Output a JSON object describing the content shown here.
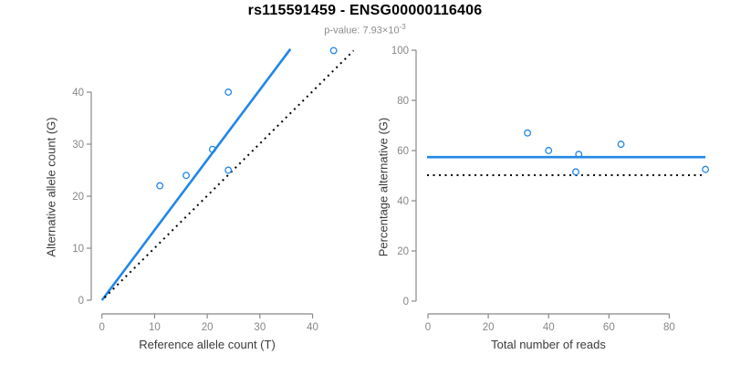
{
  "header": {
    "title": "rs115591459 - ENSG00000116406",
    "p_value_prefix": "p-value: 7.93×10",
    "p_value_exponent": "-3"
  },
  "colors": {
    "accent_blue": "#2287E6",
    "dotted_black": "#000000",
    "axis_gray": "#888888",
    "tick_label_gray": "#878787"
  },
  "chart_data": [
    {
      "type": "scatter",
      "panel": "allele-counts",
      "xlabel": "Reference allele count (T)",
      "ylabel": "Alternative allele count (G)",
      "xlim": [
        0,
        48
      ],
      "ylim": [
        0,
        48
      ],
      "xticks": [
        0,
        10,
        20,
        30,
        40
      ],
      "yticks": [
        0,
        10,
        20,
        30,
        40
      ],
      "grid": false,
      "legend": null,
      "points": [
        [
          11,
          22
        ],
        [
          16,
          24
        ],
        [
          21,
          29
        ],
        [
          24,
          25
        ],
        [
          24,
          40
        ],
        [
          44,
          48
        ]
      ],
      "lines": [
        {
          "name": "fitted-ratio-line",
          "style": "solid",
          "color_key": "accent_blue",
          "width": 2.6,
          "x1": 0,
          "y1": 0,
          "x2": 35.8,
          "y2": 48.3
        },
        {
          "name": "identity-line",
          "style": "dotted",
          "color_key": "dotted_black",
          "width": 2,
          "x1": 0.5,
          "y1": 0.5,
          "x2": 47.8,
          "y2": 48.0
        }
      ]
    },
    {
      "type": "scatter",
      "panel": "percentage-vs-reads",
      "xlabel": "Total number of reads",
      "ylabel": "Percentage alternative (G)",
      "xlim": [
        0,
        93
      ],
      "ylim": [
        0,
        100
      ],
      "xticks": [
        0,
        20,
        40,
        60,
        80
      ],
      "yticks": [
        0,
        20,
        40,
        60,
        80,
        100
      ],
      "grid": false,
      "legend": null,
      "points": [
        [
          33,
          67
        ],
        [
          40,
          60
        ],
        [
          49,
          51.5
        ],
        [
          50,
          58.5
        ],
        [
          64,
          62.5
        ],
        [
          92,
          52.5
        ]
      ],
      "lines": [
        {
          "name": "mean-percentage-line",
          "style": "solid",
          "color_key": "accent_blue",
          "width": 2.6,
          "x1": -0.3,
          "y1": 57.4,
          "x2": 92,
          "y2": 57.4
        },
        {
          "name": "expected-50pct-line",
          "style": "dotted",
          "color_key": "dotted_black",
          "width": 2,
          "x1": -0.3,
          "y1": 50.2,
          "x2": 91,
          "y2": 50.2
        }
      ]
    }
  ]
}
